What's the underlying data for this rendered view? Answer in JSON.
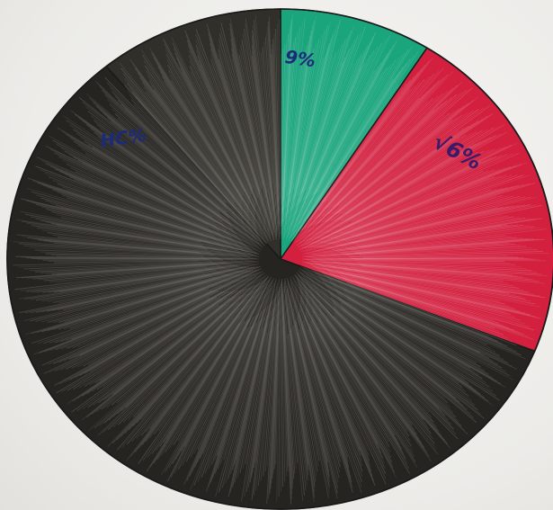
{
  "chart_data": {
    "type": "pie",
    "slices": [
      {
        "label": "9%",
        "value": 9,
        "color": "#1aa57d",
        "label_color": "#1c2a7a"
      },
      {
        "label": "√6%",
        "value": 22,
        "color": "#d3203f",
        "label_color": "#3a1a6a"
      },
      {
        "label": "",
        "value": 58,
        "color": "#262421",
        "label_color": "#1c2a7a"
      },
      {
        "label": "HC%",
        "value": 11,
        "color": "#312f2a",
        "label_color": "#1c2a7a"
      }
    ],
    "outline_color": "#1a1a1a",
    "background_color": "#eeeeec"
  }
}
